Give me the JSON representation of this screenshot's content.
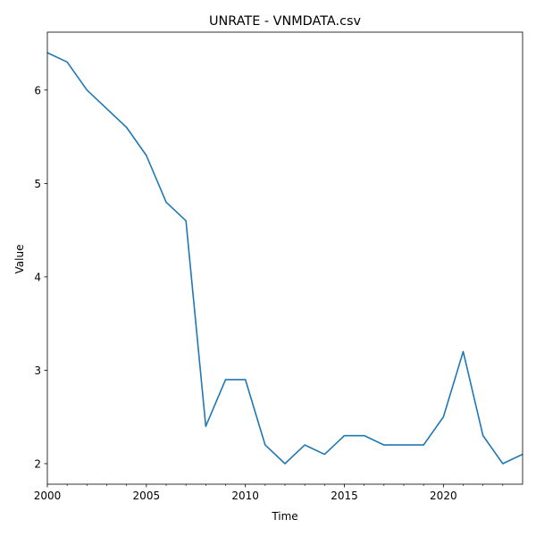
{
  "chart_data": {
    "type": "line",
    "title": "UNRATE - VNMDATA.csv",
    "xlabel": "Time",
    "ylabel": "Value",
    "xlim": [
      2000,
      2024
    ],
    "ylim": [
      1.78,
      6.62
    ],
    "x_major_ticks": [
      2000,
      2005,
      2010,
      2015,
      2020
    ],
    "x_tick_labels": [
      "2000",
      "2005",
      "2010",
      "2015",
      "2020"
    ],
    "x_minor_ticks": [
      2001,
      2002,
      2003,
      2004,
      2006,
      2007,
      2008,
      2009,
      2011,
      2012,
      2013,
      2014,
      2016,
      2017,
      2018,
      2019,
      2021,
      2022,
      2023
    ],
    "y_ticks": [
      2,
      3,
      4,
      5,
      6
    ],
    "y_tick_labels": [
      "2",
      "3",
      "4",
      "5",
      "6"
    ],
    "grid": false,
    "series": [
      {
        "color": "#1f77b4",
        "x": [
          2000,
          2001,
          2002,
          2003,
          2004,
          2005,
          2006,
          2007,
          2008,
          2009,
          2010,
          2011,
          2012,
          2013,
          2014,
          2015,
          2016,
          2017,
          2018,
          2019,
          2020,
          2021,
          2022,
          2023,
          2024
        ],
        "values": [
          6.4,
          6.3,
          6.0,
          5.8,
          5.6,
          5.3,
          4.8,
          4.6,
          2.4,
          2.9,
          2.9,
          2.2,
          2.0,
          2.2,
          2.1,
          2.3,
          2.3,
          2.2,
          2.2,
          2.2,
          2.5,
          3.2,
          2.3,
          2.0,
          2.1
        ]
      }
    ]
  }
}
